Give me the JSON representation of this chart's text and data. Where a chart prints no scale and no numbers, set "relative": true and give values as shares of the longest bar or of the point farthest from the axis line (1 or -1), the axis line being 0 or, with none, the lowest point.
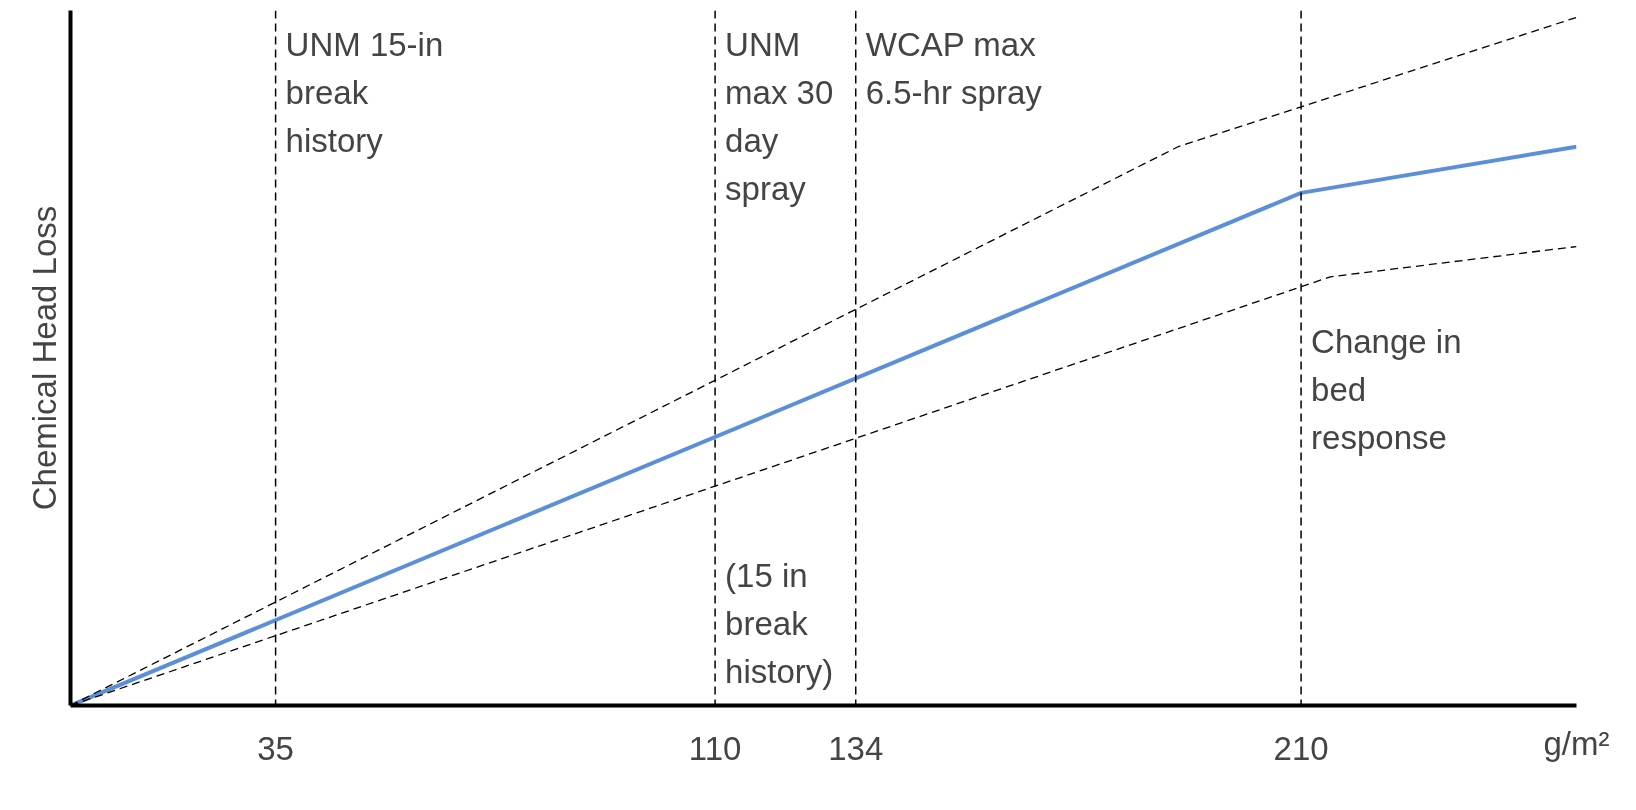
{
  "chart_data": {
    "type": "line",
    "relative": true,
    "xlabel": "g/m²",
    "ylabel": "Chemical Head Loss",
    "xlim": [
      0,
      257
    ],
    "xticks": [
      35,
      110,
      134,
      210
    ],
    "grid": false,
    "marker": "none",
    "series": [
      {
        "color": "#5b8fd9",
        "line_style": "solid",
        "x": [
          0,
          210,
          257
        ],
        "values": [
          0,
          0.745,
          0.812
        ]
      },
      {
        "color": "#000000",
        "line_style": "dashed",
        "x": [
          0,
          189,
          257
        ],
        "values": [
          0,
          0.812,
          1.0
        ]
      },
      {
        "color": "#000000",
        "line_style": "dashed",
        "x": [
          0,
          215,
          257
        ],
        "values": [
          0,
          0.623,
          0.667
        ]
      }
    ],
    "ref_lines": [
      {
        "axis": "x",
        "value": 35,
        "label": "UNM 15-in break history",
        "line_style": "dashed",
        "color": "#000000"
      },
      {
        "axis": "x",
        "value": 110,
        "label": "UNM max 30 day spray",
        "line_style": "dashed",
        "color": "#000000"
      },
      {
        "axis": "x",
        "value": 134,
        "label": "WCAP max 6.5-hr spray",
        "line_style": "dashed",
        "color": "#000000"
      },
      {
        "axis": "x",
        "value": 210,
        "label": "Change in bed response",
        "line_style": "dashed",
        "color": "#000000"
      }
    ],
    "annotations": [
      "(15 in break history)"
    ]
  }
}
